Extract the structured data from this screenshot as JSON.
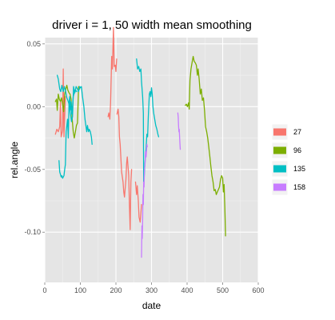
{
  "chart_data": {
    "type": "line",
    "title": "driver i = 1, 50 width mean smoothing",
    "xlabel": "date",
    "ylabel": "rel.angle",
    "xlim": [
      0,
      600
    ],
    "ylim": [
      -0.14,
      0.055
    ],
    "x_ticks": [
      0,
      100,
      200,
      300,
      400,
      500,
      600
    ],
    "x_tick_labels": [
      "0",
      "100",
      "200",
      "300",
      "400",
      "500",
      "600"
    ],
    "y_ticks": [
      0.05,
      0.0,
      -0.05,
      -0.1
    ],
    "y_tick_labels": [
      "0.05",
      "0.00",
      "-0.05",
      "-0.10"
    ],
    "grid": true,
    "legend_position": "right",
    "series": [
      {
        "name": "27",
        "color": "#F8766D",
        "segments": [
          [
            [
              30,
              -0.022
            ],
            [
              34,
              -0.018
            ],
            [
              38,
              -0.02
            ],
            [
              42,
              -0.016
            ],
            [
              44,
              0.004
            ],
            [
              46,
              -0.024
            ],
            [
              50,
              -0.019
            ],
            [
              52,
              0.03
            ],
            [
              54,
              -0.024
            ],
            [
              58,
              0.008
            ]
          ],
          [
            [
              178,
              -0.008
            ],
            [
              180,
              -0.005
            ],
            [
              183,
              -0.01
            ],
            [
              185,
              0.003
            ],
            [
              188,
              0.04
            ],
            [
              190,
              0.03
            ],
            [
              193,
              0.063
            ],
            [
              195,
              0.032
            ],
            [
              198,
              0.033
            ],
            [
              200,
              0.028
            ],
            [
              202,
              0.038
            ]
          ],
          [
            [
              203,
              -0.006
            ],
            [
              206,
              -0.002
            ],
            [
              208,
              -0.008
            ],
            [
              210,
              -0.024
            ],
            [
              212,
              -0.03
            ],
            [
              216,
              -0.052
            ],
            [
              220,
              -0.06
            ],
            [
              222,
              -0.068
            ],
            [
              224,
              -0.072
            ],
            [
              226,
              -0.065
            ],
            [
              228,
              -0.058
            ],
            [
              230,
              -0.045
            ],
            [
              232,
              -0.04
            ],
            [
              236,
              -0.055
            ],
            [
              238,
              -0.079
            ],
            [
              240,
              -0.098
            ],
            [
              242,
              -0.06
            ],
            [
              244,
              -0.05
            ]
          ],
          [
            [
              255,
              -0.06
            ],
            [
              258,
              -0.07
            ],
            [
              260,
              -0.063
            ],
            [
              263,
              -0.075
            ],
            [
              265,
              -0.088
            ],
            [
              268,
              -0.092
            ],
            [
              270,
              -0.085
            ],
            [
              272,
              -0.078
            ]
          ]
        ]
      },
      {
        "name": "96",
        "color": "#7CAE00",
        "segments": [
          [
            [
              30,
              0.004
            ],
            [
              33,
              0.006
            ],
            [
              35,
              -0.003
            ],
            [
              38,
              0.01
            ],
            [
              41,
              0.006
            ],
            [
              44,
              0.004
            ],
            [
              47,
              0.007
            ],
            [
              50,
              0.002
            ],
            [
              53,
              -0.004
            ],
            [
              56,
              0.01
            ],
            [
              59,
              0.014
            ],
            [
              62,
              0.017
            ],
            [
              65,
              0.013
            ],
            [
              68,
              0.011
            ],
            [
              71,
              0.01
            ],
            [
              74,
              0.006
            ],
            [
              77,
              -0.01
            ],
            [
              80,
              -0.02
            ],
            [
              83,
              -0.025
            ],
            [
              86,
              -0.02
            ],
            [
              89,
              -0.015
            ],
            [
              92,
              -0.013
            ],
            [
              95,
              0.016
            ],
            [
              98,
              0.014
            ]
          ],
          [
            [
              395,
              0.001
            ],
            [
              398,
              0.002
            ],
            [
              401,
              0.0
            ],
            [
              404,
              0.003
            ],
            [
              406,
              -0.002
            ],
            [
              408,
              0.021
            ],
            [
              411,
              0.03
            ],
            [
              414,
              0.035
            ],
            [
              417,
              0.04
            ],
            [
              420,
              0.036
            ],
            [
              423,
              0.035
            ],
            [
              426,
              0.033
            ],
            [
              429,
              0.025
            ],
            [
              431,
              0.03
            ],
            [
              434,
              0.022
            ],
            [
              437,
              0.01
            ],
            [
              440,
              0.014
            ],
            [
              443,
              0.005
            ],
            [
              446,
              0.007
            ],
            [
              449,
              -0.003
            ],
            [
              452,
              -0.016
            ],
            [
              455,
              -0.02
            ],
            [
              458,
              -0.025
            ],
            [
              461,
              -0.032
            ],
            [
              464,
              -0.04
            ],
            [
              467,
              -0.048
            ],
            [
              470,
              -0.055
            ],
            [
              473,
              -0.06
            ],
            [
              476,
              -0.067
            ],
            [
              479,
              -0.066
            ],
            [
              482,
              -0.07
            ],
            [
              485,
              -0.068
            ],
            [
              488,
              -0.066
            ],
            [
              491,
              -0.064
            ],
            [
              494,
              -0.058
            ],
            [
              497,
              -0.055
            ],
            [
              500,
              -0.057
            ],
            [
              502,
              -0.068
            ],
            [
              504,
              -0.062
            ],
            [
              506,
              -0.08
            ],
            [
              508,
              -0.103
            ]
          ]
        ]
      },
      {
        "name": "135",
        "color": "#00BFC4",
        "segments": [
          [
            [
              35,
              0.025
            ],
            [
              38,
              0.022
            ],
            [
              40,
              0.018
            ],
            [
              42,
              0.014
            ],
            [
              45,
              0.012
            ],
            [
              48,
              0.017
            ],
            [
              52,
              0.012
            ],
            [
              55,
              0.016
            ],
            [
              58,
              0.013
            ],
            [
              62,
              0.007
            ],
            [
              65,
              0.005
            ],
            [
              68,
              0.002
            ],
            [
              72,
              -0.005
            ],
            [
              75,
              -0.012
            ],
            [
              78,
              -0.008
            ],
            [
              81,
              0.016
            ],
            [
              84,
              0.011
            ],
            [
              87,
              0.013
            ],
            [
              90,
              0.012
            ]
          ],
          [
            [
              40,
              -0.043
            ],
            [
              42,
              -0.052
            ],
            [
              44,
              -0.054
            ],
            [
              46,
              -0.056
            ],
            [
              48,
              -0.055
            ],
            [
              50,
              -0.057
            ],
            [
              52,
              -0.056
            ],
            [
              54,
              -0.055
            ],
            [
              56,
              -0.05
            ],
            [
              58,
              -0.046
            ],
            [
              60,
              -0.02
            ],
            [
              62,
              -0.015
            ],
            [
              64,
              -0.01
            ],
            [
              66,
              -0.025
            ],
            [
              68,
              0.002
            ],
            [
              70,
              0.008
            ],
            [
              72,
              -0.003
            ],
            [
              74,
              0.004
            ],
            [
              76,
              -0.006
            ],
            [
              78,
              0.0
            ],
            [
              80,
              0.008
            ],
            [
              82,
              0.01
            ],
            [
              85,
              0.012
            ],
            [
              88,
              0.016
            ],
            [
              92,
              0.014
            ],
            [
              95,
              0.012
            ],
            [
              98,
              0.016
            ],
            [
              100,
              0.015
            ],
            [
              103,
              0.016
            ],
            [
              106,
              0.008
            ],
            [
              110,
              0.0
            ],
            [
              113,
              -0.01
            ],
            [
              116,
              -0.016
            ],
            [
              118,
              -0.02
            ],
            [
              120,
              -0.015
            ],
            [
              123,
              -0.02
            ],
            [
              125,
              -0.018
            ],
            [
              128,
              -0.02
            ],
            [
              131,
              -0.024
            ],
            [
              133,
              -0.03
            ]
          ],
          [
            [
              258,
              0.038
            ],
            [
              261,
              0.03
            ],
            [
              264,
              0.032
            ],
            [
              267,
              0.028
            ],
            [
              270,
              0.03
            ],
            [
              272,
              0.02
            ],
            [
              275,
              0.008
            ],
            [
              277,
              -0.005
            ],
            [
              278,
              -0.06
            ],
            [
              279,
              -0.058
            ],
            [
              281,
              -0.048
            ],
            [
              283,
              -0.04
            ],
            [
              285,
              -0.032
            ],
            [
              287,
              -0.022
            ],
            [
              289,
              -0.024
            ],
            [
              291,
              -0.008
            ],
            [
              294,
              0.01
            ],
            [
              296,
              0.012
            ],
            [
              298,
              0.008
            ],
            [
              300,
              0.015
            ],
            [
              302,
              0.01
            ],
            [
              304,
              0.0
            ],
            [
              306,
              -0.005
            ],
            [
              309,
              -0.01
            ],
            [
              312,
              -0.015
            ],
            [
              315,
              -0.018
            ],
            [
              318,
              -0.022
            ],
            [
              320,
              -0.024
            ]
          ]
        ]
      },
      {
        "name": "158",
        "color": "#C77CFF",
        "segments": [
          [
            [
              272,
              -0.12
            ],
            [
              273,
              -0.095
            ],
            [
              274,
              -0.105
            ],
            [
              275,
              -0.09
            ],
            [
              276,
              -0.07
            ],
            [
              277,
              -0.078
            ],
            [
              278,
              -0.06
            ],
            [
              279,
              -0.064
            ],
            [
              280,
              -0.05
            ],
            [
              282,
              -0.045
            ],
            [
              283,
              -0.036
            ],
            [
              285,
              -0.04
            ],
            [
              287,
              -0.03
            ],
            [
              288,
              -0.032
            ]
          ],
          [
            [
              374,
              -0.005
            ],
            [
              375,
              -0.008
            ],
            [
              376,
              -0.015
            ],
            [
              377,
              -0.02
            ],
            [
              378,
              -0.018
            ],
            [
              379,
              -0.025
            ],
            [
              380,
              -0.03
            ],
            [
              381,
              -0.034
            ]
          ]
        ]
      }
    ]
  }
}
